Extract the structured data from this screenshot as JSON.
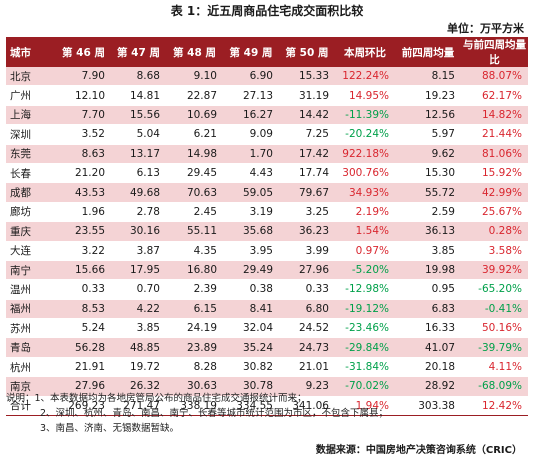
{
  "title": "表 1：近五周商品住宅成交面积比较",
  "unit": "单位：万平方米",
  "headers": [
    "城市",
    "第 46 周",
    "第 47 周",
    "第 48 周",
    "第 49 周",
    "第 50 周",
    "本周环比",
    "前四周均量",
    "与前四周均量比"
  ],
  "rows": [
    {
      "city": "北京",
      "w46": "7.90",
      "w47": "8.68",
      "w48": "9.10",
      "w49": "6.90",
      "w50": "15.33",
      "wow": "122.24%",
      "avg4": "8.15",
      "vs_avg": "88.07%",
      "wow_dir": "up",
      "vs_dir": "up"
    },
    {
      "city": "广州",
      "w46": "12.10",
      "w47": "14.81",
      "w48": "22.87",
      "w49": "27.13",
      "w50": "31.19",
      "wow": "14.95%",
      "avg4": "19.23",
      "vs_avg": "62.17%",
      "wow_dir": "up",
      "vs_dir": "up"
    },
    {
      "city": "上海",
      "w46": "7.70",
      "w47": "15.56",
      "w48": "10.69",
      "w49": "16.27",
      "w50": "14.42",
      "wow": "-11.39%",
      "avg4": "12.56",
      "vs_avg": "14.82%",
      "wow_dir": "down",
      "vs_dir": "up"
    },
    {
      "city": "深圳",
      "w46": "3.52",
      "w47": "5.04",
      "w48": "6.21",
      "w49": "9.09",
      "w50": "7.25",
      "wow": "-20.24%",
      "avg4": "5.97",
      "vs_avg": "21.44%",
      "wow_dir": "down",
      "vs_dir": "up"
    },
    {
      "city": "东莞",
      "w46": "8.63",
      "w47": "13.17",
      "w48": "14.98",
      "w49": "1.70",
      "w50": "17.42",
      "wow": "922.18%",
      "avg4": "9.62",
      "vs_avg": "81.06%",
      "wow_dir": "up",
      "vs_dir": "up"
    },
    {
      "city": "长春",
      "w46": "21.20",
      "w47": "6.13",
      "w48": "29.45",
      "w49": "4.43",
      "w50": "17.74",
      "wow": "300.76%",
      "avg4": "15.30",
      "vs_avg": "15.92%",
      "wow_dir": "up",
      "vs_dir": "up"
    },
    {
      "city": "成都",
      "w46": "43.53",
      "w47": "49.68",
      "w48": "70.63",
      "w49": "59.05",
      "w50": "79.67",
      "wow": "34.93%",
      "avg4": "55.72",
      "vs_avg": "42.99%",
      "wow_dir": "up",
      "vs_dir": "up"
    },
    {
      "city": "廊坊",
      "w46": "1.96",
      "w47": "2.78",
      "w48": "2.45",
      "w49": "3.19",
      "w50": "3.25",
      "wow": "2.19%",
      "avg4": "2.59",
      "vs_avg": "25.67%",
      "wow_dir": "up",
      "vs_dir": "up"
    },
    {
      "city": "重庆",
      "w46": "23.55",
      "w47": "30.16",
      "w48": "55.11",
      "w49": "35.68",
      "w50": "36.23",
      "wow": "1.54%",
      "avg4": "36.13",
      "vs_avg": "0.28%",
      "wow_dir": "up",
      "vs_dir": "up"
    },
    {
      "city": "大连",
      "w46": "3.22",
      "w47": "3.87",
      "w48": "4.35",
      "w49": "3.95",
      "w50": "3.99",
      "wow": "0.97%",
      "avg4": "3.85",
      "vs_avg": "3.58%",
      "wow_dir": "up",
      "vs_dir": "up"
    },
    {
      "city": "南宁",
      "w46": "15.66",
      "w47": "17.95",
      "w48": "16.80",
      "w49": "29.49",
      "w50": "27.96",
      "wow": "-5.20%",
      "avg4": "19.98",
      "vs_avg": "39.92%",
      "wow_dir": "down",
      "vs_dir": "up"
    },
    {
      "city": "温州",
      "w46": "0.33",
      "w47": "0.70",
      "w48": "2.39",
      "w49": "0.38",
      "w50": "0.33",
      "wow": "-12.98%",
      "avg4": "0.95",
      "vs_avg": "-65.20%",
      "wow_dir": "down",
      "vs_dir": "down"
    },
    {
      "city": "福州",
      "w46": "8.53",
      "w47": "4.22",
      "w48": "6.15",
      "w49": "8.41",
      "w50": "6.80",
      "wow": "-19.12%",
      "avg4": "6.83",
      "vs_avg": "-0.41%",
      "wow_dir": "down",
      "vs_dir": "down"
    },
    {
      "city": "苏州",
      "w46": "5.24",
      "w47": "3.85",
      "w48": "24.19",
      "w49": "32.04",
      "w50": "24.52",
      "wow": "-23.46%",
      "avg4": "16.33",
      "vs_avg": "50.16%",
      "wow_dir": "down",
      "vs_dir": "up"
    },
    {
      "city": "青岛",
      "w46": "56.28",
      "w47": "48.85",
      "w48": "23.89",
      "w49": "35.24",
      "w50": "24.73",
      "wow": "-29.84%",
      "avg4": "41.07",
      "vs_avg": "-39.79%",
      "wow_dir": "down",
      "vs_dir": "down"
    },
    {
      "city": "杭州",
      "w46": "21.91",
      "w47": "19.72",
      "w48": "8.28",
      "w49": "30.82",
      "w50": "21.01",
      "wow": "-31.84%",
      "avg4": "20.18",
      "vs_avg": "4.11%",
      "wow_dir": "down",
      "vs_dir": "up"
    },
    {
      "city": "南京",
      "w46": "27.96",
      "w47": "26.32",
      "w48": "30.63",
      "w49": "30.78",
      "w50": "9.23",
      "wow": "-70.02%",
      "avg4": "28.92",
      "vs_avg": "-68.09%",
      "wow_dir": "down",
      "vs_dir": "down"
    }
  ],
  "total": {
    "city": "合计",
    "w46": "269.23",
    "w47": "271.47",
    "w48": "338.19",
    "w49": "334.55",
    "w50": "341.06",
    "wow": "1.94%",
    "avg4": "303.38",
    "vs_avg": "12.42%",
    "wow_dir": "up",
    "vs_dir": "up"
  },
  "notes": {
    "line1": "说明：1、本表数据均为各地房管局公布的商品住宅成交通报统计而来；",
    "line2": "2、深圳、杭州、青岛、南昌、南宁、长春等城市统计范围为市区，不包含下属县；",
    "line3": "3、南昌、济南、无锡数据暂缺。"
  },
  "source": "数据来源：中国房地产决策咨询系统（CRIC）",
  "colors": {
    "header_bg": "#9b1e23",
    "band": "#f4d3d5",
    "up": "#d9262f",
    "down": "#00a04a"
  }
}
